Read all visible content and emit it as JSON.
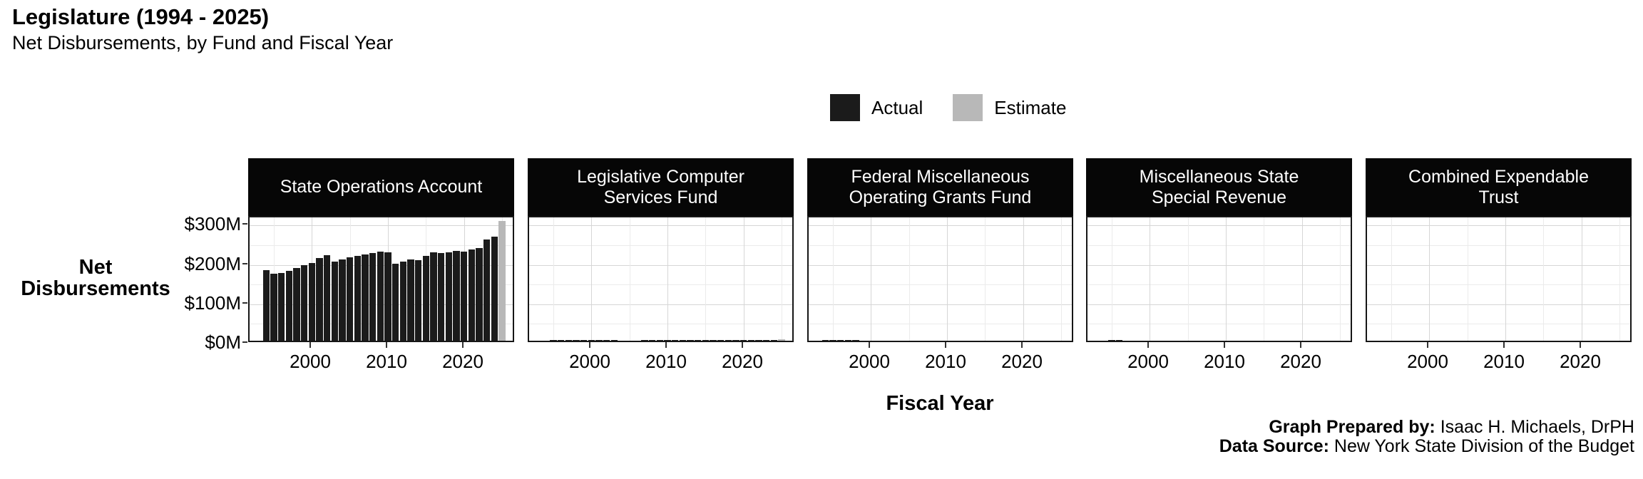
{
  "title": "Legislature (1994 - 2025)",
  "subtitle": "Net Disbursements, by Fund and Fiscal Year",
  "legend": {
    "items": [
      {
        "label": "Actual",
        "color": "#1b1b1b"
      },
      {
        "label": "Estimate",
        "color": "#b8b8b8"
      }
    ]
  },
  "axes": {
    "y_title_line1": "Net",
    "y_title_line2": "Disbursements",
    "x_title": "Fiscal Year"
  },
  "footer": {
    "prepared_label": "Graph Prepared by:",
    "prepared_value": " Isaac H. Michaels, DrPH",
    "source_label": "Data Source:",
    "source_value": " New York State Division of the Budget"
  },
  "chart_data": {
    "type": "bar",
    "title": "Legislature (1994 - 2025)",
    "subtitle": "Net Disbursements, by Fund and Fiscal Year",
    "xlabel": "Fiscal Year",
    "ylabel": "Net Disbursements",
    "units": "USD millions",
    "x": [
      1994,
      1995,
      1996,
      1997,
      1998,
      1999,
      2000,
      2001,
      2002,
      2003,
      2004,
      2005,
      2006,
      2007,
      2008,
      2009,
      2010,
      2011,
      2012,
      2013,
      2014,
      2015,
      2016,
      2017,
      2018,
      2019,
      2020,
      2021,
      2022,
      2023,
      2024,
      2025
    ],
    "ylim": [
      0,
      320
    ],
    "y_ticks": [
      {
        "label": "$0M",
        "value": 0
      },
      {
        "label": "$100M",
        "value": 100
      },
      {
        "label": "$200M",
        "value": 200
      },
      {
        "label": "$300M",
        "value": 300
      }
    ],
    "x_ticks": [
      2000,
      2010,
      2020
    ],
    "grid": {
      "major": true,
      "minor": true
    },
    "legend_position": "top",
    "series_colors": {
      "Actual": "#1b1b1b",
      "Estimate": "#b8b8b8"
    },
    "estimate_years": [
      2025
    ],
    "facets": [
      {
        "label": "State Operations Account",
        "label_lines": [
          "State Operations Account"
        ],
        "values": [
          180,
          170,
          172,
          178,
          184,
          193,
          198,
          210,
          218,
          202,
          207,
          212,
          215,
          219,
          223,
          226,
          224,
          195,
          202,
          207,
          204,
          216,
          225,
          223,
          224,
          229,
          226,
          232,
          236,
          257,
          265,
          305
        ]
      },
      {
        "label": "Legislative Computer Services Fund",
        "label_lines": [
          "Legislative Computer",
          "Services Fund"
        ],
        "values": [
          0,
          2.5,
          2.5,
          2.5,
          2.5,
          2.5,
          2.5,
          2.5,
          2.5,
          2.5,
          0,
          0,
          0,
          2.5,
          2.5,
          2.5,
          2.5,
          2.5,
          2.5,
          2.5,
          2.5,
          2.5,
          2.5,
          2.5,
          2.5,
          2.5,
          2.5,
          2.5,
          2.5,
          2.5,
          2.5,
          3
        ]
      },
      {
        "label": "Federal Miscellaneous Operating Grants Fund",
        "label_lines": [
          "Federal Miscellaneous",
          "Operating Grants Fund"
        ],
        "values": [
          0.8,
          0.8,
          0.8,
          0.8,
          0.8,
          0,
          0,
          0,
          0,
          0,
          0,
          0,
          0,
          0,
          0,
          0,
          0,
          0,
          0,
          0,
          0,
          0,
          0,
          0,
          0,
          0,
          0,
          0,
          0,
          0,
          0,
          0
        ]
      },
      {
        "label": "Miscellaneous State Special Revenue",
        "label_lines": [
          "Miscellaneous State",
          "Special Revenue"
        ],
        "values": [
          0,
          0.8,
          0.8,
          0,
          0,
          0,
          0,
          0,
          0,
          0,
          0,
          0,
          0,
          0,
          0,
          0,
          0,
          0,
          0,
          0,
          0,
          0,
          0,
          0,
          0,
          0,
          0,
          0,
          0,
          0,
          0,
          0
        ]
      },
      {
        "label": "Combined Expendable Trust",
        "label_lines": [
          "Combined Expendable",
          "Trust"
        ],
        "values": [
          0,
          0,
          0,
          0,
          0,
          0,
          0,
          0,
          0,
          0,
          0,
          0,
          0,
          0,
          0,
          0,
          0,
          0,
          0,
          0,
          0,
          0,
          0,
          0,
          0,
          0,
          0,
          0,
          0,
          0,
          0,
          0
        ]
      }
    ]
  }
}
